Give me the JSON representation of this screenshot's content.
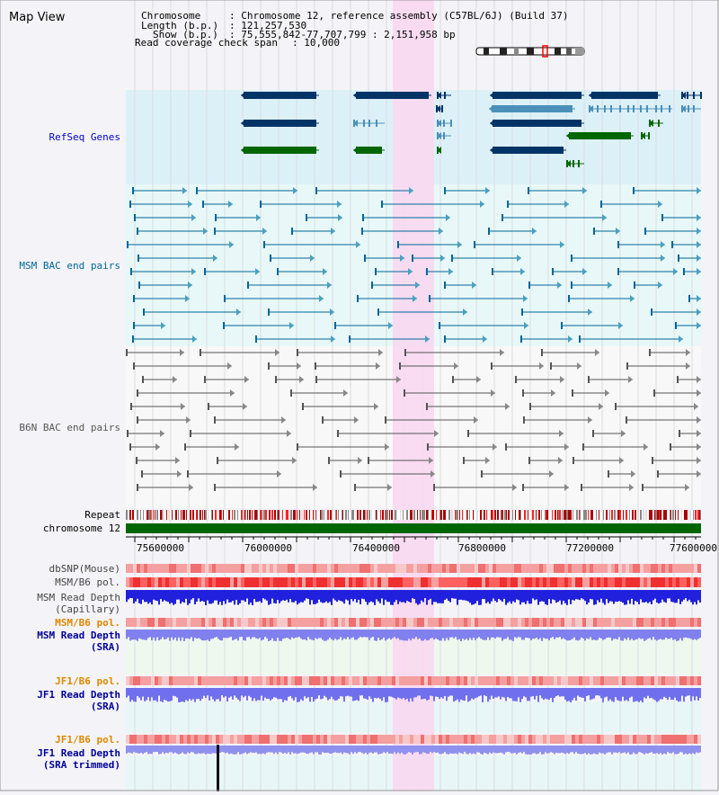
{
  "view_title": "Map View",
  "info": {
    "chromosome_label": "Chromosome",
    "chromosome_value": ": Chromosome 12, reference assembly (C57BL/6J) (Build 37)",
    "length_label": "Length (b.p.)",
    "length_value": ": 121,257,530",
    "show_label": "Show (b.p.)",
    "show_value": ": 75,555,842-77,707,799 : 2,151,958 bp",
    "coverage_label": "Read coverage check span",
    "coverage_value": ": 10,000"
  },
  "tracks": {
    "refseq": "RefSeq Genes",
    "msm_bac": "MSM BAC end pairs",
    "b6n_bac": "B6N BAC end pairs",
    "repeat": "Repeat",
    "chromosome": "chromosome 12",
    "dbsnp": "dbSNP(Mouse)",
    "msm_b6_pol": "MSM/B6 pol.",
    "msm_read_depth_cap_1": "MSM Read Depth",
    "msm_read_depth_cap_2": "(Capillary)",
    "msm_b6_pol_2": "MSM/B6 pol.",
    "msm_read_depth_sra_1": "MSM Read Depth",
    "msm_read_depth_sra_2": "(SRA)",
    "jf1_b6_pol": "JF1/B6 pol.",
    "jf1_read_depth_sra_1": "JF1 Read Depth",
    "jf1_read_depth_sra_2": "(SRA)",
    "jf1_b6_pol_2": "JF1/B6 pol.",
    "jf1_read_depth_trim_1": "JF1 Read Depth",
    "jf1_read_depth_trim_2": "(SRA trimmed)"
  },
  "axis": {
    "ticks": [
      "75600000",
      "76000000",
      "76400000",
      "76800000",
      "77200000",
      "77600000"
    ]
  },
  "colors": {
    "refseq_label": "#0000cc",
    "msm_label": "#006699",
    "b6n_label": "#555555",
    "orange_label": "#dd8800",
    "blue_label": "#000099",
    "highlight": "#f8d8f0",
    "chromosome_bar": "#006600"
  }
}
